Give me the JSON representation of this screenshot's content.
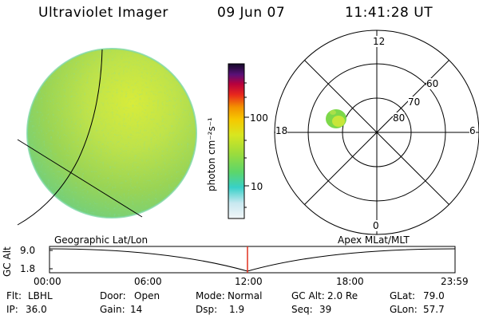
{
  "header": {
    "title": "Ultraviolet Imager",
    "date": "09 Jun 07",
    "time": "11:41:28 UT"
  },
  "colorbar": {
    "label": "photon cm⁻²s⁻¹",
    "ticks": [
      "100",
      "10"
    ]
  },
  "polar_plot": {
    "mlt_labels": {
      "top": "12",
      "left": "18",
      "right": "6",
      "bottom": "0"
    },
    "lat_labels": [
      "60",
      "70",
      "80"
    ]
  },
  "timeline": {
    "left_label": "Geographic Lat/Lon",
    "right_label": "Apex MLat/MLT",
    "axis_title": "GC Alt",
    "y_ticks": [
      "9.0",
      "1.8"
    ],
    "x_ticks": [
      "00:00",
      "06:00",
      "12:00",
      "18:00",
      "23:59"
    ],
    "marker_color": "#e0301e"
  },
  "info": {
    "flt_label": "Flt:",
    "flt_value": "LBHL",
    "ip_label": "IP:",
    "ip_value": "36.0",
    "door_label": "Door:",
    "door_value": "Open",
    "gain_label": "Gain:",
    "gain_value": "14",
    "mode_label": "Mode:",
    "mode_value": "Normal",
    "dsp_label": "Dsp:",
    "dsp_value": "1.9",
    "gcalt_label": "GC Alt:",
    "gcalt_value": "2.0 Re",
    "seq_label": "Seq:",
    "seq_value": "39",
    "glat_label": "GLat:",
    "glat_value": "79.0",
    "glon_label": "GLon:",
    "glon_value": "57.7"
  }
}
